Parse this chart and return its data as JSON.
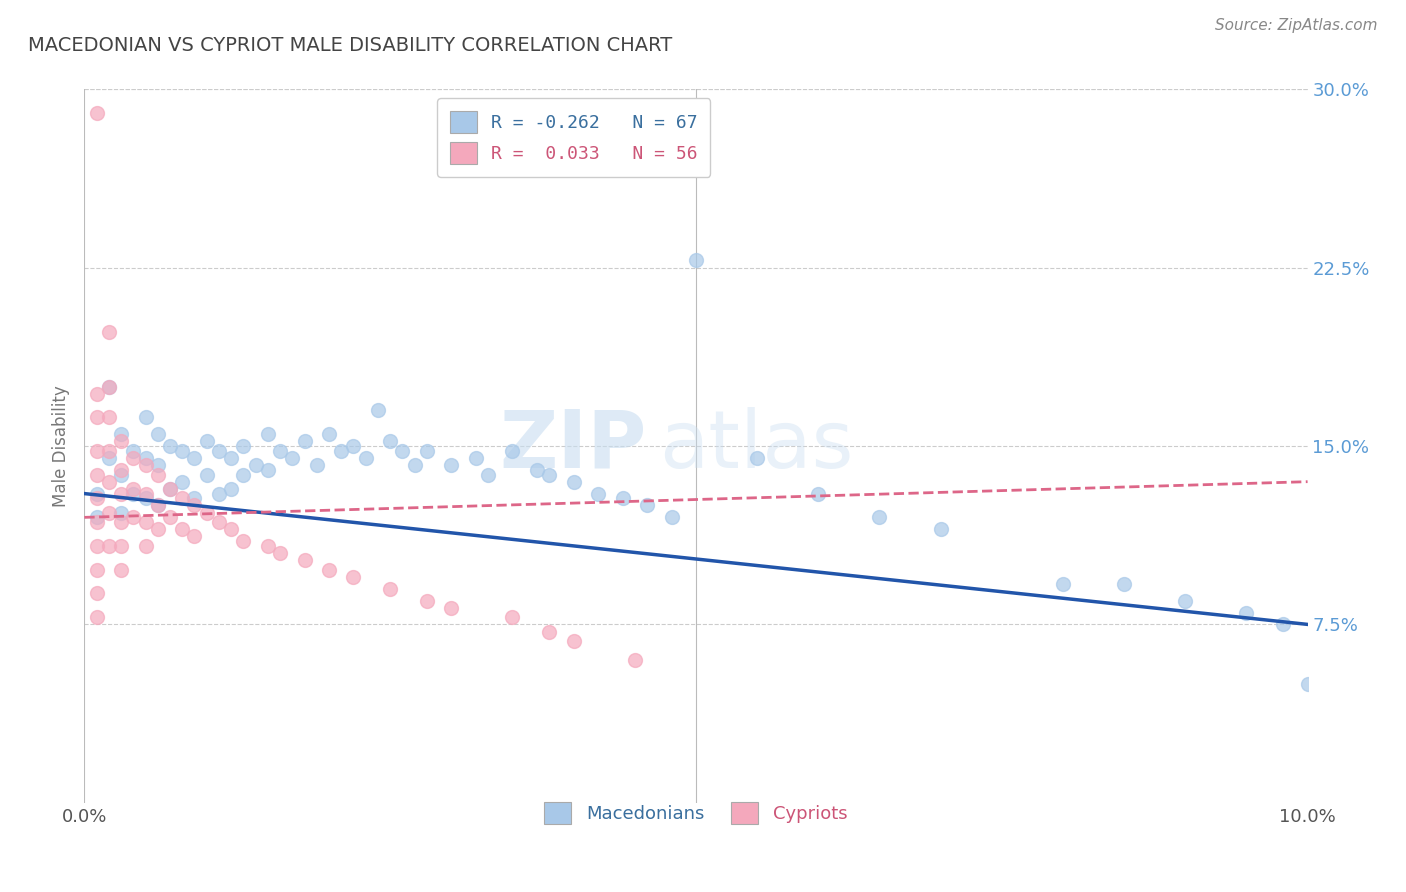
{
  "title": "MACEDONIAN VS CYPRIOT MALE DISABILITY CORRELATION CHART",
  "source": "Source: ZipAtlas.com",
  "ylabel": "Male Disability",
  "xlim": [
    0.0,
    0.1
  ],
  "ylim": [
    0.0,
    0.3
  ],
  "yticks": [
    0.075,
    0.15,
    0.225,
    0.3
  ],
  "ytick_labels": [
    "7.5%",
    "15.0%",
    "22.5%",
    "30.0%"
  ],
  "xticks": [
    0.0,
    0.025,
    0.05,
    0.075,
    0.1
  ],
  "xtick_labels": [
    "0.0%",
    "",
    "",
    "",
    "10.0%"
  ],
  "macedonian_color": "#a8c8e8",
  "cypriot_color": "#f4a8bc",
  "macedonian_line_color": "#2255aa",
  "cypriot_line_color": "#dd6688",
  "r_macedonian": -0.262,
  "n_macedonian": 67,
  "r_cypriot": 0.033,
  "n_cypriot": 56,
  "watermark_zip": "ZIP",
  "watermark_atlas": "atlas",
  "background_color": "#ffffff",
  "mac_line_x0": 0.0,
  "mac_line_y0": 0.13,
  "mac_line_x1": 0.1,
  "mac_line_y1": 0.075,
  "cyp_line_x0": 0.0,
  "cyp_line_y0": 0.12,
  "cyp_line_x1": 0.1,
  "cyp_line_y1": 0.135,
  "macedonians_x": [
    0.001,
    0.001,
    0.002,
    0.002,
    0.003,
    0.003,
    0.003,
    0.004,
    0.004,
    0.005,
    0.005,
    0.005,
    0.006,
    0.006,
    0.006,
    0.007,
    0.007,
    0.008,
    0.008,
    0.009,
    0.009,
    0.01,
    0.01,
    0.011,
    0.011,
    0.012,
    0.012,
    0.013,
    0.013,
    0.014,
    0.015,
    0.015,
    0.016,
    0.017,
    0.018,
    0.019,
    0.02,
    0.021,
    0.022,
    0.023,
    0.024,
    0.025,
    0.026,
    0.027,
    0.028,
    0.03,
    0.032,
    0.033,
    0.035,
    0.037,
    0.038,
    0.04,
    0.042,
    0.044,
    0.046,
    0.048,
    0.05,
    0.055,
    0.06,
    0.065,
    0.07,
    0.08,
    0.085,
    0.09,
    0.095,
    0.098,
    0.1
  ],
  "macedonians_y": [
    0.13,
    0.12,
    0.175,
    0.145,
    0.155,
    0.138,
    0.122,
    0.148,
    0.13,
    0.162,
    0.145,
    0.128,
    0.155,
    0.142,
    0.125,
    0.15,
    0.132,
    0.148,
    0.135,
    0.145,
    0.128,
    0.152,
    0.138,
    0.148,
    0.13,
    0.145,
    0.132,
    0.15,
    0.138,
    0.142,
    0.155,
    0.14,
    0.148,
    0.145,
    0.152,
    0.142,
    0.155,
    0.148,
    0.15,
    0.145,
    0.165,
    0.152,
    0.148,
    0.142,
    0.148,
    0.142,
    0.145,
    0.138,
    0.148,
    0.14,
    0.138,
    0.135,
    0.13,
    0.128,
    0.125,
    0.12,
    0.228,
    0.145,
    0.13,
    0.12,
    0.115,
    0.092,
    0.092,
    0.085,
    0.08,
    0.075,
    0.05
  ],
  "cypriots_x": [
    0.001,
    0.001,
    0.001,
    0.001,
    0.001,
    0.001,
    0.001,
    0.001,
    0.001,
    0.001,
    0.001,
    0.002,
    0.002,
    0.002,
    0.002,
    0.002,
    0.002,
    0.002,
    0.003,
    0.003,
    0.003,
    0.003,
    0.003,
    0.003,
    0.004,
    0.004,
    0.004,
    0.005,
    0.005,
    0.005,
    0.005,
    0.006,
    0.006,
    0.006,
    0.007,
    0.007,
    0.008,
    0.008,
    0.009,
    0.009,
    0.01,
    0.011,
    0.012,
    0.013,
    0.015,
    0.016,
    0.018,
    0.02,
    0.022,
    0.025,
    0.028,
    0.03,
    0.035,
    0.038,
    0.04,
    0.045
  ],
  "cypriots_y": [
    0.29,
    0.172,
    0.162,
    0.148,
    0.138,
    0.128,
    0.118,
    0.108,
    0.098,
    0.088,
    0.078,
    0.198,
    0.175,
    0.162,
    0.148,
    0.135,
    0.122,
    0.108,
    0.152,
    0.14,
    0.13,
    0.118,
    0.108,
    0.098,
    0.145,
    0.132,
    0.12,
    0.142,
    0.13,
    0.118,
    0.108,
    0.138,
    0.125,
    0.115,
    0.132,
    0.12,
    0.128,
    0.115,
    0.125,
    0.112,
    0.122,
    0.118,
    0.115,
    0.11,
    0.108,
    0.105,
    0.102,
    0.098,
    0.095,
    0.09,
    0.085,
    0.082,
    0.078,
    0.072,
    0.068,
    0.06
  ]
}
